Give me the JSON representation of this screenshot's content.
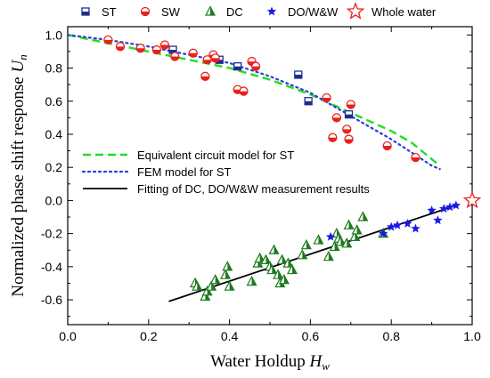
{
  "chart_data": {
    "type": "scatter",
    "xlabel": "Water Holdup",
    "xlabel_symbol": "H",
    "xlabel_sub": "w",
    "ylabel": "Normalized phase shift response",
    "ylabel_symbol": "U",
    "ylabel_sub": "n",
    "xlim": [
      0,
      1.0
    ],
    "ylim": [
      -0.75,
      1.05
    ],
    "x_ticks": [
      "0.0",
      "0.2",
      "0.4",
      "0.6",
      "0.8",
      "1.0"
    ],
    "x_tick_values": [
      0,
      0.2,
      0.4,
      0.6,
      0.8,
      1.0
    ],
    "y_ticks": [
      "1.0",
      "0.8",
      "0.6",
      "0.4",
      "0.2",
      "0.0",
      "-0.2",
      "-0.4",
      "-0.6"
    ],
    "y_tick_values": [
      1.0,
      0.8,
      0.6,
      0.4,
      0.2,
      0.0,
      -0.2,
      -0.4,
      -0.6
    ],
    "legend_top": "top",
    "legend_lines_position": "middle-left",
    "series": [
      {
        "name": "ST",
        "marker": "half-square",
        "color": "#1f2d8f",
        "x": [
          0.26,
          0.375,
          0.42,
          0.57,
          0.595,
          0.695
        ],
        "y": [
          0.91,
          0.85,
          0.81,
          0.76,
          0.6,
          0.52
        ]
      },
      {
        "name": "SW",
        "marker": "half-circle",
        "color": "#e8211c",
        "x": [
          0.1,
          0.13,
          0.18,
          0.22,
          0.24,
          0.265,
          0.31,
          0.34,
          0.345,
          0.36,
          0.365,
          0.42,
          0.435,
          0.455,
          0.465,
          0.64,
          0.655,
          0.665,
          0.69,
          0.695,
          0.7,
          0.79,
          0.86
        ],
        "y": [
          0.97,
          0.93,
          0.92,
          0.91,
          0.94,
          0.87,
          0.89,
          0.75,
          0.85,
          0.88,
          0.86,
          0.67,
          0.66,
          0.84,
          0.81,
          0.62,
          0.38,
          0.5,
          0.43,
          0.37,
          0.58,
          0.33,
          0.26
        ]
      },
      {
        "name": "DC",
        "marker": "half-triangle",
        "color": "#1e7a1e",
        "x": [
          0.315,
          0.32,
          0.34,
          0.345,
          0.355,
          0.365,
          0.39,
          0.395,
          0.4,
          0.455,
          0.47,
          0.475,
          0.49,
          0.5,
          0.505,
          0.51,
          0.52,
          0.525,
          0.53,
          0.535,
          0.545,
          0.555,
          0.58,
          0.59,
          0.62,
          0.645,
          0.66,
          0.665,
          0.67,
          0.675,
          0.69,
          0.695,
          0.71,
          0.715,
          0.73,
          0.78
        ],
        "y": [
          -0.5,
          -0.52,
          -0.58,
          -0.55,
          -0.52,
          -0.48,
          -0.45,
          -0.4,
          -0.52,
          -0.49,
          -0.38,
          -0.35,
          -0.36,
          -0.4,
          -0.42,
          -0.3,
          -0.45,
          -0.5,
          -0.36,
          -0.48,
          -0.38,
          -0.42,
          -0.33,
          -0.27,
          -0.24,
          -0.34,
          -0.28,
          -0.2,
          -0.23,
          -0.25,
          -0.26,
          -0.15,
          -0.22,
          -0.18,
          -0.1,
          -0.2
        ]
      },
      {
        "name": "DO/W&W",
        "marker": "star",
        "color": "#1a1ae6",
        "x": [
          0.65,
          0.78,
          0.8,
          0.815,
          0.84,
          0.86,
          0.9,
          0.915,
          0.93,
          0.945,
          0.96
        ],
        "y": [
          -0.22,
          -0.2,
          -0.16,
          -0.15,
          -0.14,
          -0.17,
          -0.06,
          -0.12,
          -0.05,
          -0.04,
          -0.03
        ]
      },
      {
        "name": "Whole water",
        "marker": "open-star",
        "color": "#e8211c",
        "x": [
          1.0
        ],
        "y": [
          0.0
        ]
      },
      {
        "name": "Equivalent circuit model for ST",
        "line": "dashed",
        "color": "#22dd22",
        "x": [
          0,
          0.1,
          0.2,
          0.3,
          0.4,
          0.5,
          0.6,
          0.7,
          0.8,
          0.85,
          0.9,
          0.92
        ],
        "y": [
          1.0,
          0.95,
          0.9,
          0.85,
          0.8,
          0.73,
          0.64,
          0.53,
          0.42,
          0.35,
          0.25,
          0.21
        ]
      },
      {
        "name": "FEM model for ST",
        "line": "dotted",
        "color": "#2a3cd8",
        "x": [
          0,
          0.1,
          0.2,
          0.3,
          0.4,
          0.5,
          0.6,
          0.7,
          0.8,
          0.85,
          0.9,
          0.92
        ],
        "y": [
          1.0,
          0.97,
          0.93,
          0.88,
          0.83,
          0.75,
          0.65,
          0.51,
          0.37,
          0.29,
          0.21,
          0.19
        ]
      },
      {
        "name": "Fitting of DC, DO/W&W measurement results",
        "line": "solid",
        "color": "#000000",
        "x": [
          0.25,
          0.96
        ],
        "y": [
          -0.61,
          -0.03
        ]
      }
    ]
  }
}
